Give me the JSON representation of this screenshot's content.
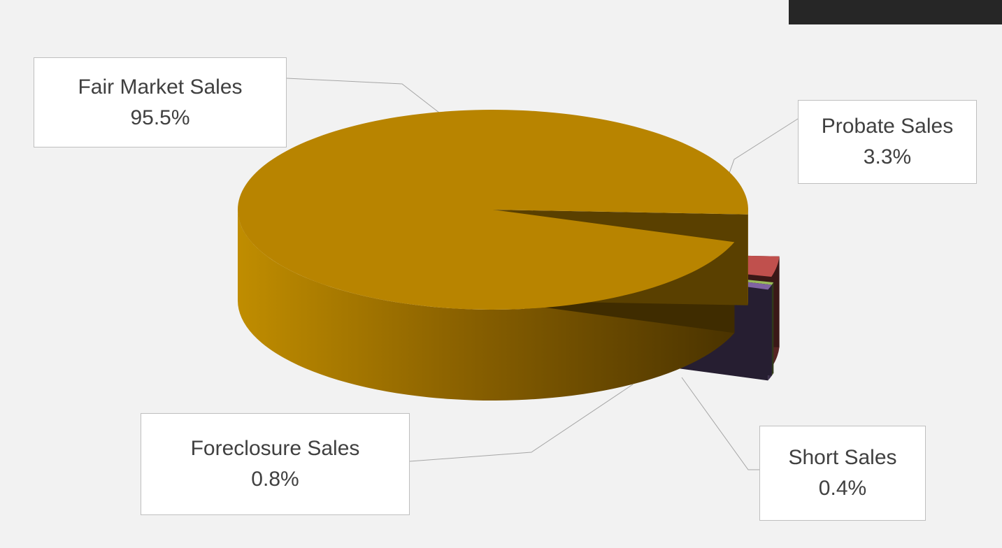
{
  "chart_data": {
    "type": "pie",
    "title": "",
    "slices": [
      {
        "label": "Fair Market Sales",
        "value": 95.5,
        "value_label": "95.5%",
        "color": "#b88400"
      },
      {
        "label": "Probate Sales",
        "value": 3.3,
        "value_label": "3.3%",
        "color": "#c0504d"
      },
      {
        "label": "Short Sales",
        "value": 0.4,
        "value_label": "0.4%",
        "color": "#9bbb59"
      },
      {
        "label": "Foreclosure Sales",
        "value": 0.8,
        "value_label": "0.8%",
        "color": "#8064a2"
      }
    ],
    "style": "3d-exploded",
    "legend": "none",
    "data_labels": "callouts"
  }
}
